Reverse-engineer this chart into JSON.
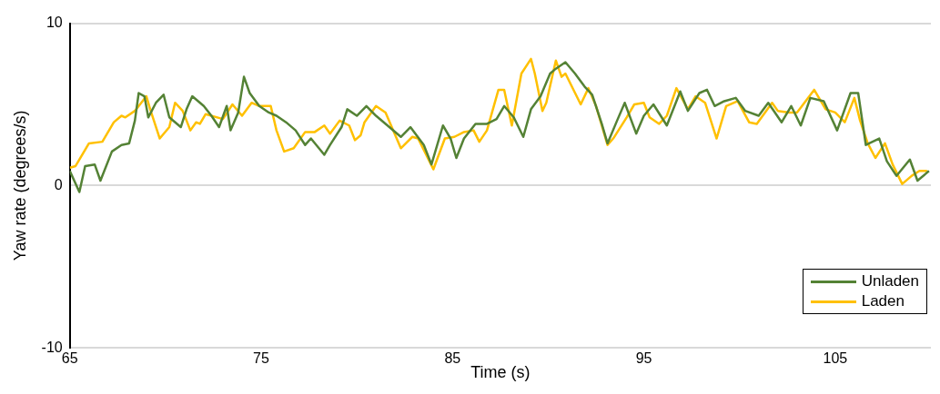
{
  "chart_data": {
    "type": "line",
    "xlabel": "Time (s)",
    "ylabel": "Yaw rate (degrees/s)",
    "xlim": [
      65,
      110
    ],
    "xticks": [
      65,
      75,
      85,
      95,
      105
    ],
    "ylim": [
      -10,
      10
    ],
    "yticks": [
      -10,
      0,
      10
    ],
    "grid": "y",
    "legend": "bottom right",
    "marker": "none",
    "line_style": "solid",
    "series": [
      {
        "name": "Unladen",
        "color": "#548235",
        "x": [
          65.0,
          65.5,
          65.8,
          66.3,
          66.6,
          67.2,
          67.7,
          68.1,
          68.4,
          68.6,
          68.9,
          69.1,
          69.5,
          69.9,
          70.2,
          70.8,
          71.1,
          71.4,
          72.0,
          72.4,
          72.8,
          73.2,
          73.4,
          73.8,
          74.1,
          74.4,
          74.9,
          75.4,
          75.8,
          76.3,
          76.8,
          77.3,
          77.6,
          78.3,
          78.6,
          79.2,
          79.5,
          80.0,
          80.5,
          81.0,
          81.7,
          82.3,
          82.8,
          83.5,
          83.9,
          84.5,
          84.9,
          85.2,
          85.6,
          86.2,
          86.8,
          87.3,
          87.7,
          88.2,
          88.7,
          89.1,
          89.6,
          90.1,
          90.4,
          90.9,
          91.4,
          91.9,
          92.3,
          92.8,
          93.1,
          93.6,
          94.0,
          94.6,
          95.0,
          95.5,
          96.2,
          96.9,
          97.3,
          97.9,
          98.3,
          98.7,
          99.2,
          99.8,
          100.3,
          101.0,
          101.5,
          102.2,
          102.7,
          103.2,
          103.7,
          104.4,
          105.1,
          105.8,
          106.2,
          106.6,
          107.3,
          107.7,
          108.2,
          108.9,
          109.3,
          109.9
        ],
        "values": [
          0.9,
          -0.4,
          1.2,
          1.3,
          0.3,
          2.1,
          2.5,
          2.6,
          4.0,
          5.7,
          5.5,
          4.2,
          5.1,
          5.6,
          4.2,
          3.6,
          4.7,
          5.5,
          4.9,
          4.3,
          3.6,
          4.9,
          3.4,
          4.5,
          6.7,
          5.7,
          4.9,
          4.5,
          4.3,
          3.9,
          3.4,
          2.5,
          2.9,
          1.9,
          2.5,
          3.6,
          4.7,
          4.3,
          4.9,
          4.3,
          3.6,
          3.0,
          3.6,
          2.5,
          1.3,
          3.7,
          2.9,
          1.7,
          2.9,
          3.8,
          3.8,
          4.1,
          4.9,
          4.2,
          3.0,
          4.7,
          5.5,
          6.9,
          7.2,
          7.6,
          6.9,
          6.1,
          5.6,
          3.8,
          2.6,
          4.0,
          5.1,
          3.2,
          4.3,
          5.0,
          3.7,
          5.8,
          4.6,
          5.7,
          5.9,
          4.9,
          5.2,
          5.4,
          4.6,
          4.3,
          5.1,
          3.9,
          4.9,
          3.7,
          5.4,
          5.2,
          3.4,
          5.7,
          5.7,
          2.5,
          2.9,
          1.5,
          0.6,
          1.6,
          0.3,
          0.9
        ]
      },
      {
        "name": "Laden",
        "color": "#ffc000",
        "x": [
          65.0,
          65.3,
          66.0,
          66.7,
          67.3,
          67.7,
          67.9,
          68.4,
          69.0,
          69.2,
          69.7,
          70.2,
          70.5,
          70.9,
          71.3,
          71.6,
          71.8,
          72.1,
          73.0,
          73.5,
          74.0,
          74.5,
          74.9,
          75.5,
          75.8,
          76.2,
          76.7,
          77.3,
          77.8,
          78.3,
          78.6,
          79.1,
          79.6,
          79.9,
          80.2,
          80.4,
          81.0,
          81.5,
          82.3,
          82.9,
          83.2,
          84.0,
          84.6,
          85.1,
          85.6,
          86.1,
          86.4,
          86.8,
          87.4,
          87.7,
          88.1,
          88.6,
          89.1,
          89.3,
          89.7,
          89.9,
          90.4,
          90.7,
          90.9,
          91.7,
          92.1,
          92.5,
          93.1,
          93.4,
          94.1,
          94.5,
          95.0,
          95.3,
          95.8,
          96.2,
          96.7,
          97.3,
          97.7,
          98.2,
          98.8,
          99.3,
          99.9,
          100.5,
          100.9,
          101.7,
          102.0,
          102.6,
          103.0,
          103.2,
          103.9,
          104.5,
          105.0,
          105.5,
          106.0,
          106.3,
          106.7,
          107.1,
          107.6,
          108.0,
          108.5,
          109.0,
          109.4,
          109.8
        ],
        "values": [
          1.1,
          1.2,
          2.6,
          2.7,
          3.9,
          4.3,
          4.2,
          4.6,
          5.5,
          4.7,
          2.9,
          3.6,
          5.1,
          4.6,
          3.4,
          3.9,
          3.8,
          4.4,
          4.1,
          5.0,
          4.3,
          5.1,
          4.9,
          4.9,
          3.4,
          2.1,
          2.3,
          3.3,
          3.3,
          3.7,
          3.2,
          4.0,
          3.7,
          2.8,
          3.1,
          3.9,
          4.9,
          4.5,
          2.3,
          3.0,
          2.9,
          1.0,
          2.9,
          3.0,
          3.3,
          3.4,
          2.7,
          3.4,
          5.9,
          5.9,
          3.7,
          6.9,
          7.8,
          6.9,
          4.6,
          5.1,
          7.7,
          6.7,
          6.9,
          5.0,
          6.0,
          4.9,
          2.5,
          2.9,
          4.2,
          5.0,
          5.1,
          4.2,
          3.8,
          4.3,
          6.0,
          4.7,
          5.5,
          5.1,
          2.9,
          4.9,
          5.2,
          3.9,
          3.8,
          5.1,
          4.6,
          4.5,
          4.5,
          4.8,
          5.9,
          4.7,
          4.5,
          3.9,
          5.4,
          4.0,
          2.6,
          1.7,
          2.6,
          1.3,
          0.1,
          0.6,
          0.9,
          0.9
        ]
      }
    ]
  }
}
